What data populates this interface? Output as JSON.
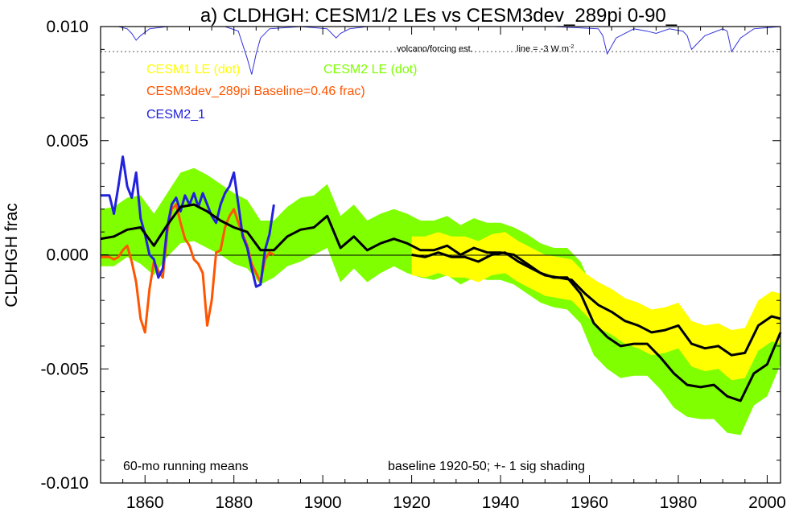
{
  "chart_data": {
    "type": "line",
    "title": "a) CLDHGH: CESM1/2 LEs vs CESM3dev_289pi 0-90_",
    "ylabel": "CLDHGH frac",
    "xlim": [
      1850,
      2003
    ],
    "ylim": [
      -0.01,
      0.01
    ],
    "x_ticks": [
      1860,
      1880,
      1900,
      1920,
      1940,
      1960,
      1980,
      2000
    ],
    "y_ticks": [
      {
        "value": 0.01,
        "label": "0.010"
      },
      {
        "value": 0.005,
        "label": "0.005"
      },
      {
        "value": 0.0,
        "label": "0.000"
      },
      {
        "value": -0.005,
        "label": "-0.005"
      },
      {
        "value": -0.01,
        "label": "-0.010"
      }
    ],
    "grid": false,
    "legend": [
      {
        "label": "CESM1 LE (dot)",
        "color": "#ffff00"
      },
      {
        "label": "CESM2 LE (dot)",
        "color": "#7fff00"
      },
      {
        "label": "CESM3dev_289pi Baseline=0.46 frac)",
        "color": "#ff5500"
      },
      {
        "label": "CESM2_1",
        "color": "#2222dd"
      }
    ],
    "annotations": {
      "volcano_label": "volcano/forcing est.",
      "line_label": "line = -3 W m",
      "line_label_sup": "-2",
      "bottom_left": "60-mo running means",
      "bottom_right": "baseline 1920-50; +- 1 sig shading"
    },
    "volcano_reference_y": 0.0089,
    "volcano_series": {
      "x": [
        1850,
        1854,
        1856,
        1857,
        1858,
        1859,
        1861,
        1865,
        1870,
        1878,
        1881,
        1882,
        1883,
        1884,
        1885,
        1886,
        1888,
        1895,
        1901,
        1902,
        1903,
        1904,
        1906,
        1910,
        1920,
        1930,
        1940,
        1952,
        1962,
        1963,
        1964,
        1966,
        1970,
        1973,
        1975,
        1978,
        1981,
        1982,
        1983,
        1986,
        1990,
        1991,
        1992,
        1994,
        1997,
        2003
      ],
      "values": [
        0.01,
        0.01,
        0.0099,
        0.0097,
        0.0094,
        0.0096,
        0.0099,
        0.01,
        0.01,
        0.01,
        0.0098,
        0.0092,
        0.0086,
        0.0079,
        0.0088,
        0.0095,
        0.0099,
        0.01,
        0.0099,
        0.0097,
        0.0095,
        0.0097,
        0.0099,
        0.01,
        0.01,
        0.01,
        0.01,
        0.01,
        0.0099,
        0.0096,
        0.0088,
        0.0095,
        0.0099,
        0.0098,
        0.0097,
        0.0099,
        0.0098,
        0.0096,
        0.009,
        0.0096,
        0.0099,
        0.0098,
        0.0089,
        0.0095,
        0.0099,
        0.01
      ]
    },
    "series": [
      {
        "name": "CESM2 LE (dot)",
        "color": "#7fff00",
        "x": [
          1850,
          1853,
          1856,
          1859,
          1862,
          1865,
          1868,
          1871,
          1874,
          1877,
          1880,
          1883,
          1886,
          1889,
          1892,
          1895,
          1898,
          1901,
          1904,
          1907,
          1910,
          1913,
          1916,
          1919,
          1922,
          1925,
          1928,
          1931,
          1934,
          1937,
          1940,
          1943,
          1946,
          1949,
          1952,
          1955,
          1958,
          1961,
          1964,
          1967,
          1970,
          1973,
          1976,
          1979,
          1982,
          1985,
          1988,
          1991,
          1994,
          1997,
          2000,
          2003
        ],
        "values": [
          0.0007,
          0.0008,
          0.0011,
          0.0012,
          0.0004,
          0.0013,
          0.0021,
          0.0022,
          0.0019,
          0.0015,
          0.0012,
          0.001,
          0.0002,
          0.0002,
          0.0008,
          0.0011,
          0.0012,
          0.0017,
          0.0003,
          0.0008,
          0.0002,
          0.0005,
          0.0007,
          0.0005,
          0.0002,
          0.0002,
          0.0004,
          0.0,
          0.0003,
          0.0001,
          0.0001,
          0.0,
          -0.0004,
          -0.0008,
          -0.001,
          -0.001,
          -0.0017,
          -0.003,
          -0.0036,
          -0.004,
          -0.0039,
          -0.0039,
          -0.0045,
          -0.0052,
          -0.0057,
          -0.0058,
          -0.0057,
          -0.0062,
          -0.0064,
          -0.0052,
          -0.0048,
          -0.0034
        ],
        "lower": [
          -0.0005,
          -0.0005,
          -0.0001,
          -0.0004,
          -0.0009,
          -0.0001,
          0.0005,
          0.0006,
          0.0003,
          0.0,
          -0.0004,
          -0.0006,
          -0.0013,
          -0.001,
          -0.0005,
          -0.0003,
          0.0,
          0.0003,
          -0.0012,
          -0.0006,
          -0.0012,
          -0.0008,
          -0.0005,
          -0.0008,
          -0.001,
          -0.0011,
          -0.0009,
          -0.0013,
          -0.001,
          -0.0011,
          -0.0011,
          -0.0013,
          -0.0017,
          -0.0021,
          -0.0023,
          -0.0024,
          -0.003,
          -0.0044,
          -0.005,
          -0.0054,
          -0.0053,
          -0.0053,
          -0.0059,
          -0.0067,
          -0.0071,
          -0.0072,
          -0.0072,
          -0.0078,
          -0.0079,
          -0.0066,
          -0.0062,
          -0.0048
        ],
        "upper": [
          0.002,
          0.0021,
          0.0025,
          0.0026,
          0.0018,
          0.0027,
          0.0036,
          0.0038,
          0.0035,
          0.0031,
          0.0027,
          0.0024,
          0.0015,
          0.0015,
          0.0021,
          0.0025,
          0.0026,
          0.0031,
          0.0017,
          0.0022,
          0.0015,
          0.0018,
          0.002,
          0.0018,
          0.0015,
          0.0015,
          0.0017,
          0.0013,
          0.0016,
          0.0014,
          0.0014,
          0.0012,
          0.0009,
          0.0005,
          0.0003,
          0.0003,
          -0.0003,
          -0.0016,
          -0.0022,
          -0.0026,
          -0.0025,
          -0.0025,
          -0.0031,
          -0.0038,
          -0.0043,
          -0.0044,
          -0.0043,
          -0.0048,
          -0.005,
          -0.0038,
          -0.0034,
          -0.002
        ]
      },
      {
        "name": "CESM1 LE (dot)",
        "color": "#ffff00",
        "x": [
          1920,
          1923,
          1926,
          1929,
          1932,
          1935,
          1938,
          1941,
          1944,
          1947,
          1950,
          1953,
          1956,
          1959,
          1962,
          1965,
          1968,
          1971,
          1974,
          1977,
          1980,
          1983,
          1986,
          1989,
          1992,
          1995,
          1998,
          2001,
          2003
        ],
        "values": [
          0.0,
          -0.0001,
          0.0001,
          -0.0001,
          -0.0001,
          -0.0003,
          0.0,
          0.0001,
          -0.0003,
          -0.0006,
          -0.0009,
          -0.001,
          -0.0011,
          -0.0017,
          -0.0022,
          -0.0025,
          -0.0029,
          -0.0031,
          -0.0034,
          -0.0033,
          -0.0031,
          -0.0039,
          -0.0041,
          -0.004,
          -0.0044,
          -0.0043,
          -0.0031,
          -0.0027,
          -0.0028
        ],
        "lower": [
          -0.0009,
          -0.001,
          -0.0008,
          -0.001,
          -0.001,
          -0.0012,
          -0.0009,
          -0.0008,
          -0.0012,
          -0.0015,
          -0.0018,
          -0.0019,
          -0.002,
          -0.0026,
          -0.0032,
          -0.0035,
          -0.0039,
          -0.0041,
          -0.0044,
          -0.0043,
          -0.0041,
          -0.0049,
          -0.0051,
          -0.005,
          -0.0055,
          -0.0054,
          -0.0042,
          -0.0038,
          -0.0039
        ],
        "upper": [
          0.0008,
          0.0008,
          0.001,
          0.0008,
          0.0008,
          0.0006,
          0.0009,
          0.001,
          0.0006,
          0.0003,
          0.0,
          -0.0001,
          -0.0002,
          -0.0008,
          -0.0012,
          -0.0015,
          -0.0019,
          -0.0021,
          -0.0024,
          -0.0023,
          -0.0021,
          -0.0029,
          -0.0031,
          -0.003,
          -0.0033,
          -0.0032,
          -0.002,
          -0.0016,
          -0.0017
        ]
      },
      {
        "name": "CESM3dev_289pi Baseline=0.46 frac)",
        "color": "#ff5500",
        "x": [
          1850,
          1852,
          1853,
          1854,
          1855,
          1856,
          1857,
          1858,
          1859,
          1860,
          1861,
          1862,
          1863,
          1864,
          1865,
          1866,
          1867,
          1868,
          1869,
          1870,
          1871,
          1872,
          1873,
          1874,
          1875,
          1876,
          1877,
          1878,
          1879,
          1880,
          1881,
          1882,
          1883,
          1884,
          1885,
          1886,
          1887,
          1888,
          1889
        ],
        "values": [
          -0.0001,
          -0.0001,
          -0.0002,
          -0.0001,
          0.0002,
          0.0004,
          -0.0003,
          -0.0012,
          -0.0028,
          -0.0034,
          -0.0015,
          -0.0003,
          -0.0007,
          -0.001,
          0.001,
          0.002,
          0.0022,
          0.0014,
          0.0007,
          0.0004,
          -0.0002,
          -0.0004,
          -0.0008,
          -0.0031,
          -0.002,
          0.0001,
          0.0002,
          0.0012,
          0.0017,
          0.002,
          0.0014,
          0.0009,
          0.0004,
          -0.0004,
          -0.0008,
          -0.0012,
          -0.0002,
          0.0001,
          0.0
        ]
      },
      {
        "name": "CESM2_1",
        "color": "#2222dd",
        "x": [
          1850,
          1852,
          1853,
          1854,
          1855,
          1856,
          1857,
          1858,
          1859,
          1860,
          1861,
          1862,
          1863,
          1864,
          1865,
          1866,
          1867,
          1868,
          1869,
          1870,
          1871,
          1872,
          1873,
          1874,
          1875,
          1876,
          1877,
          1878,
          1879,
          1880,
          1881,
          1882,
          1883,
          1884,
          1885,
          1886,
          1887,
          1888,
          1889
        ],
        "values": [
          0.0026,
          0.0026,
          0.0018,
          0.003,
          0.0043,
          0.003,
          0.0025,
          0.0036,
          0.0016,
          0.0009,
          0.0,
          -0.0002,
          -0.001,
          -0.0006,
          0.0012,
          0.0022,
          0.0025,
          0.0019,
          0.0026,
          0.0022,
          0.0027,
          0.0021,
          0.0027,
          0.0022,
          0.0017,
          0.0014,
          0.0022,
          0.0027,
          0.003,
          0.0036,
          0.0022,
          0.0008,
          0.0003,
          -0.0006,
          -0.0014,
          -0.0013,
          0.0002,
          0.0009,
          0.0022
        ]
      },
      {
        "name": "CESM2 LE mean",
        "color": "#000000",
        "x": [
          1850,
          1853,
          1856,
          1859,
          1862,
          1865,
          1868,
          1871,
          1874,
          1877,
          1880,
          1883,
          1886,
          1889,
          1892,
          1895,
          1898,
          1901,
          1904,
          1907,
          1910,
          1913,
          1916,
          1919,
          1922,
          1925,
          1928,
          1931,
          1934,
          1937,
          1940,
          1943,
          1946,
          1949,
          1952,
          1955,
          1958,
          1961,
          1964,
          1967,
          1970,
          1973,
          1976,
          1979,
          1982,
          1985,
          1988,
          1991,
          1994,
          1997,
          2000,
          2003
        ],
        "values": [
          0.0007,
          0.0008,
          0.0011,
          0.0012,
          0.0004,
          0.0013,
          0.0021,
          0.0022,
          0.0019,
          0.0015,
          0.0012,
          0.001,
          0.0002,
          0.0002,
          0.0008,
          0.0011,
          0.0012,
          0.0017,
          0.0003,
          0.0008,
          0.0002,
          0.0005,
          0.0007,
          0.0005,
          0.0002,
          0.0002,
          0.0004,
          0.0,
          0.0003,
          0.0001,
          0.0001,
          0.0,
          -0.0004,
          -0.0008,
          -0.001,
          -0.001,
          -0.0017,
          -0.003,
          -0.0036,
          -0.004,
          -0.0039,
          -0.0039,
          -0.0045,
          -0.0052,
          -0.0057,
          -0.0058,
          -0.0057,
          -0.0062,
          -0.0064,
          -0.0052,
          -0.0048,
          -0.0034
        ]
      },
      {
        "name": "CESM1 LE mean",
        "color": "#000000",
        "x": [
          1920,
          1923,
          1926,
          1929,
          1932,
          1935,
          1938,
          1941,
          1944,
          1947,
          1950,
          1953,
          1956,
          1959,
          1962,
          1965,
          1968,
          1971,
          1974,
          1977,
          1980,
          1983,
          1986,
          1989,
          1992,
          1995,
          1998,
          2001,
          2003
        ],
        "values": [
          0.0,
          -0.0001,
          0.0001,
          -0.0001,
          -0.0001,
          -0.0003,
          0.0,
          0.0001,
          -0.0003,
          -0.0006,
          -0.0009,
          -0.001,
          -0.0011,
          -0.0017,
          -0.0022,
          -0.0025,
          -0.0029,
          -0.0031,
          -0.0034,
          -0.0033,
          -0.0031,
          -0.0039,
          -0.0041,
          -0.004,
          -0.0044,
          -0.0043,
          -0.0031,
          -0.0027,
          -0.0028
        ]
      }
    ]
  }
}
